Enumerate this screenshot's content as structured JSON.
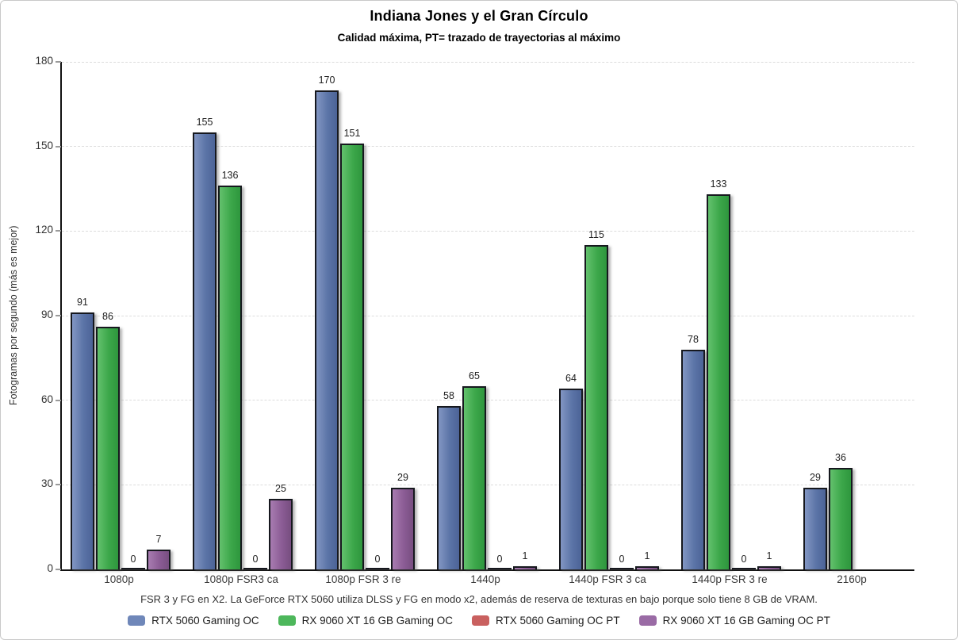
{
  "chart_data": {
    "type": "bar",
    "title": "Indiana Jones y el Gran Círculo",
    "subtitle": "Calidad máxima, PT= trazado de trayectorias al máximo",
    "ylabel": "Fotogramas por segundo (más es mejor)",
    "note": "FSR 3 y FG en X2. La GeForce RTX 5060 utiliza DLSS y FG en modo x2, además de reserva de texturas en bajo porque solo tiene 8 GB de VRAM.",
    "categories": [
      "1080p",
      "1080p FSR3 ca",
      "1080p FSR 3 re",
      "1440p",
      "1440p FSR 3 ca",
      "1440p FSR 3 re",
      "2160p"
    ],
    "series": [
      {
        "name": "RTX 5060 Gaming OC",
        "color": "#6f87b9",
        "fill": [
          "#8296c3",
          "#5b74a7",
          "#4c6397"
        ],
        "values": [
          91,
          155,
          170,
          58,
          64,
          78,
          29
        ]
      },
      {
        "name": "RX 9060 XT 16 GB Gaming OC",
        "color": "#4db75b",
        "fill": [
          "#63c16d",
          "#3ca74a",
          "#2e963d"
        ],
        "values": [
          86,
          136,
          151,
          65,
          115,
          133,
          36
        ]
      },
      {
        "name": "RTX 5060 Gaming OC PT",
        "color": "#c9605f",
        "fill": [
          "#d47a77",
          "#c25a58",
          "#ad4b4a"
        ],
        "values": [
          0,
          0,
          0,
          0,
          0,
          0,
          null
        ]
      },
      {
        "name": "RX 9060 XT 16 GB Gaming OC PT",
        "color": "#9a6ba5",
        "fill": [
          "#a87cb1",
          "#8b5c95",
          "#774e80"
        ],
        "values": [
          7,
          25,
          29,
          1,
          1,
          1,
          null
        ]
      }
    ],
    "ylim": [
      0,
      180
    ],
    "yticks": [
      0,
      30,
      60,
      90,
      120,
      150,
      180
    ],
    "grid": "horizontal-dashed",
    "legend_position": "bottom",
    "bar_border_color": "#16181e"
  }
}
